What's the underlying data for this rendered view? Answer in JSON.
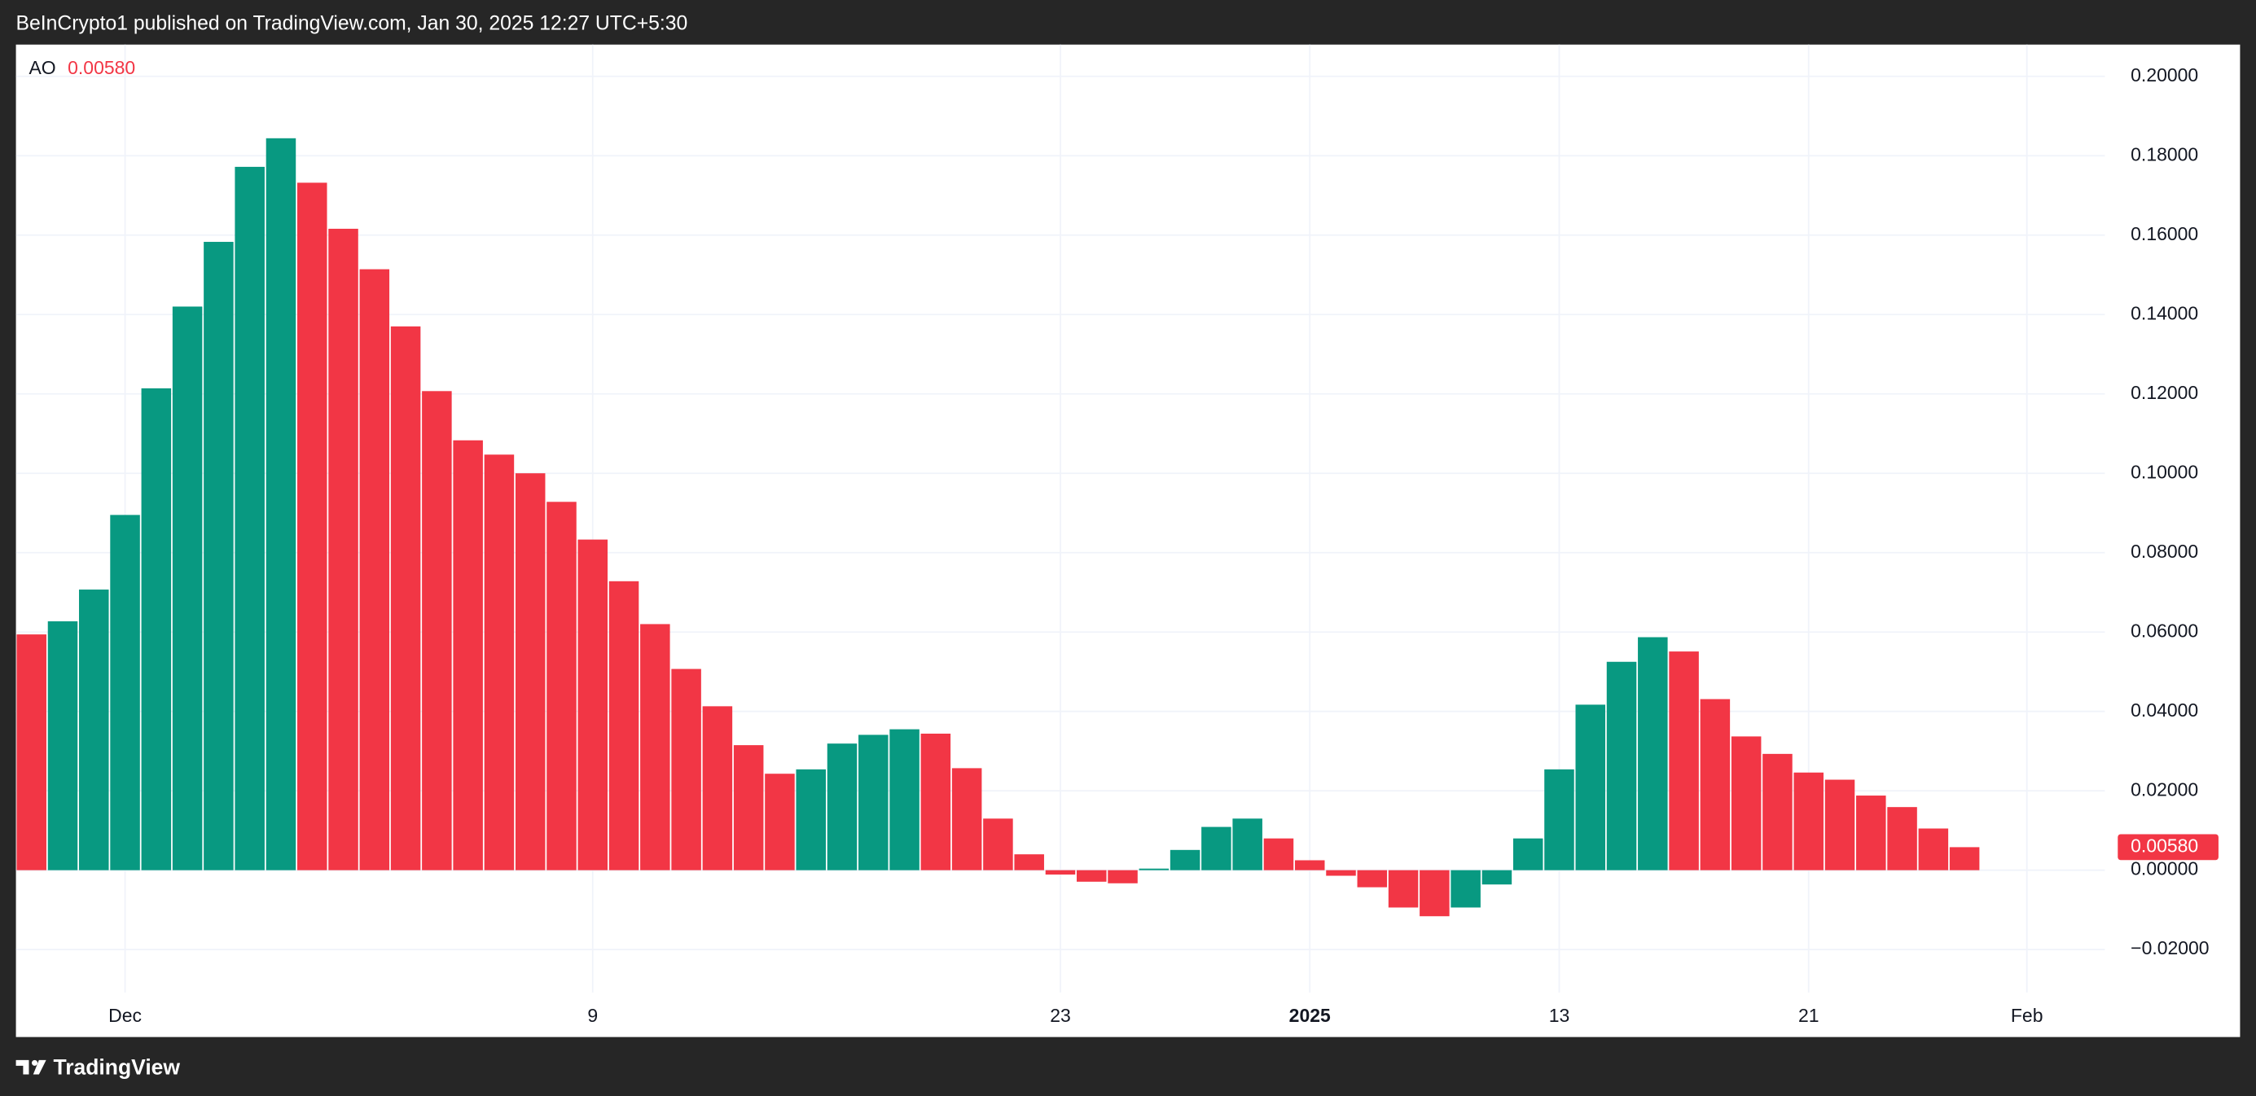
{
  "header": {
    "text": "BeInCrypto1 published on TradingView.com, Jan 30, 2025 12:27 UTC+5:30"
  },
  "footer": {
    "brand": "TradingView"
  },
  "chart_data": {
    "type": "bar",
    "indicator": "AO",
    "last_value_label": "0.00580",
    "categories": [
      null,
      null,
      null,
      "Dec",
      null,
      null,
      null,
      null,
      null,
      null,
      null,
      null,
      null,
      null,
      null,
      null,
      null,
      null,
      "9",
      null,
      null,
      null,
      null,
      null,
      null,
      null,
      null,
      null,
      null,
      null,
      null,
      null,
      null,
      "23",
      null,
      null,
      null,
      null,
      null,
      null,
      null,
      "2025",
      null,
      null,
      null,
      null,
      null,
      null,
      null,
      "13",
      null,
      null,
      null,
      null,
      null,
      null,
      null,
      "21",
      null,
      null,
      null,
      null,
      null,
      null,
      "Feb",
      null,
      null
    ],
    "values": [
      0.0594,
      0.0627,
      0.0707,
      0.0895,
      0.1214,
      0.142,
      0.1583,
      0.1772,
      0.1844,
      0.1732,
      0.1616,
      0.1514,
      0.137,
      0.1207,
      0.1083,
      0.1047,
      0.1,
      0.0928,
      0.0833,
      0.0728,
      0.062,
      0.0507,
      0.0413,
      0.0315,
      0.0243,
      0.0254,
      0.0319,
      0.0341,
      0.0355,
      0.0344,
      0.0257,
      0.013,
      0.004,
      -0.0011,
      -0.0029,
      -0.0033,
      0.0004,
      0.0051,
      0.0109,
      0.013,
      0.008,
      0.0025,
      -0.0014,
      -0.0043,
      -0.0094,
      -0.0116,
      -0.0094,
      -0.0036,
      0.008,
      0.0254,
      0.0417,
      0.0525,
      0.0587,
      0.0551,
      0.0431,
      0.0337,
      0.0293,
      0.0246,
      0.0228,
      0.0188,
      0.0159,
      0.0105,
      0.0058,
      null,
      null,
      null,
      null
    ],
    "colors": [
      "#f23645",
      "#089981",
      "#089981",
      "#089981",
      "#089981",
      "#089981",
      "#089981",
      "#089981",
      "#089981",
      "#f23645",
      "#f23645",
      "#f23645",
      "#f23645",
      "#f23645",
      "#f23645",
      "#f23645",
      "#f23645",
      "#f23645",
      "#f23645",
      "#f23645",
      "#f23645",
      "#f23645",
      "#f23645",
      "#f23645",
      "#f23645",
      "#089981",
      "#089981",
      "#089981",
      "#089981",
      "#f23645",
      "#f23645",
      "#f23645",
      "#f23645",
      "#f23645",
      "#f23645",
      "#f23645",
      "#089981",
      "#089981",
      "#089981",
      "#089981",
      "#f23645",
      "#f23645",
      "#f23645",
      "#f23645",
      "#f23645",
      "#f23645",
      "#089981",
      "#089981",
      "#089981",
      "#089981",
      "#089981",
      "#089981",
      "#089981",
      "#f23645",
      "#f23645",
      "#f23645",
      "#f23645",
      "#f23645",
      "#f23645",
      "#f23645",
      "#f23645",
      "#f23645",
      "#f23645",
      null,
      null,
      null,
      null
    ],
    "ylim": [
      -0.0308,
      0.208
    ],
    "yticks": [
      {
        "value": -0.02,
        "label": "−0.02000"
      },
      {
        "value": 0,
        "label": "0.00000"
      },
      {
        "value": 0.02,
        "label": "0.02000"
      },
      {
        "value": 0.04,
        "label": "0.04000"
      },
      {
        "value": 0.06,
        "label": "0.06000"
      },
      {
        "value": 0.08,
        "label": "0.08000"
      },
      {
        "value": 0.1,
        "label": "0.10000"
      },
      {
        "value": 0.12,
        "label": "0.12000"
      },
      {
        "value": 0.14,
        "label": "0.14000"
      },
      {
        "value": 0.16,
        "label": "0.16000"
      },
      {
        "value": 0.18,
        "label": "0.18000"
      },
      {
        "value": 0.2,
        "label": "0.20000"
      }
    ],
    "grid": true
  }
}
